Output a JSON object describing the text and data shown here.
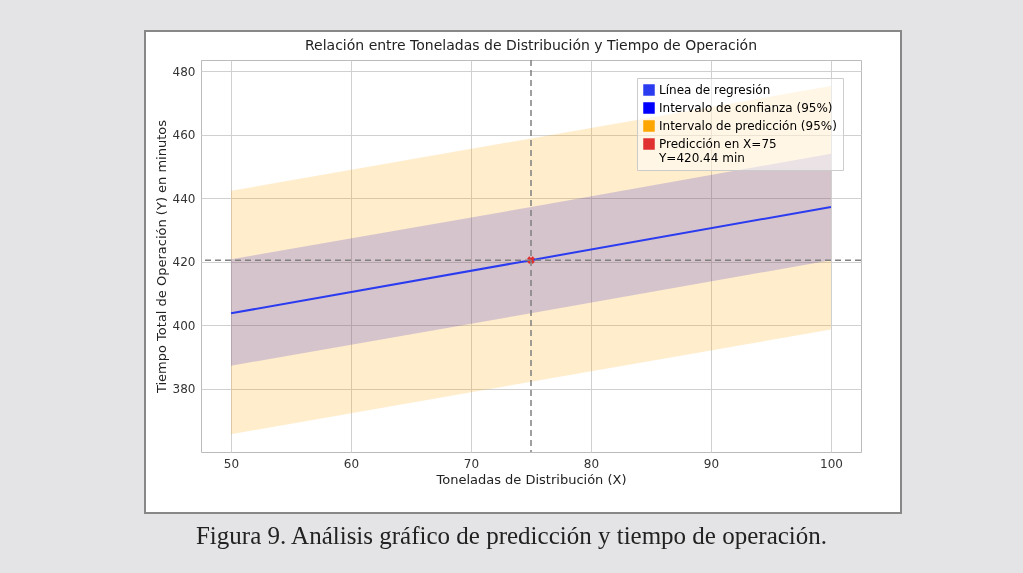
{
  "chart_data": {
    "type": "line",
    "title": "Relación entre Toneladas de Distribución y Tiempo de Operación",
    "xlabel": "Toneladas de Distribución (X)",
    "ylabel": "Tiempo Total de Operación (Y) en minutos",
    "x": [
      50,
      75,
      100
    ],
    "series": [
      {
        "name": "Línea de regresión",
        "color": "#2b3cf0",
        "values": [
          403.7,
          420.44,
          437.2
        ]
      },
      {
        "name": "Intervalo de confianza (95%)",
        "type": "area",
        "color": "#0000ff",
        "values": [
          null,
          null,
          null
        ],
        "lower": [
          387.2,
          403.7,
          420.4
        ],
        "upper": [
          420.7,
          437.2,
          454
        ]
      },
      {
        "name": "Intervalo de predicción (95%)",
        "type": "area",
        "color": "#ffa500",
        "values": [
          null,
          null,
          null
        ],
        "lower": [
          365.6,
          382.1,
          398.6
        ],
        "upper": [
          442.3,
          458.8,
          475.3
        ]
      },
      {
        "name": "Predicción en X=75\nY=420.44 min",
        "type": "scatter",
        "color": "#e03030",
        "marker": "cross",
        "x": [
          75
        ],
        "values": [
          420.44
        ]
      }
    ],
    "ref_lines": [
      {
        "axis": "x",
        "value": 75,
        "color": "#808080",
        "line_style": "dashed"
      },
      {
        "axis": "y",
        "value": 420.44,
        "color": "#808080",
        "line_style": "dashed"
      }
    ],
    "xlim": [
      47.5,
      102.5
    ],
    "xticks": [
      50,
      60,
      70,
      80,
      90,
      100
    ],
    "ylim": [
      360,
      483.5
    ],
    "yticks": [
      380,
      400,
      420,
      440,
      460,
      480
    ],
    "grid": true,
    "legend": "top right",
    "annotations": [
      "Figura 9. Análisis gráfico de predicción y tiempo de operación."
    ]
  }
}
